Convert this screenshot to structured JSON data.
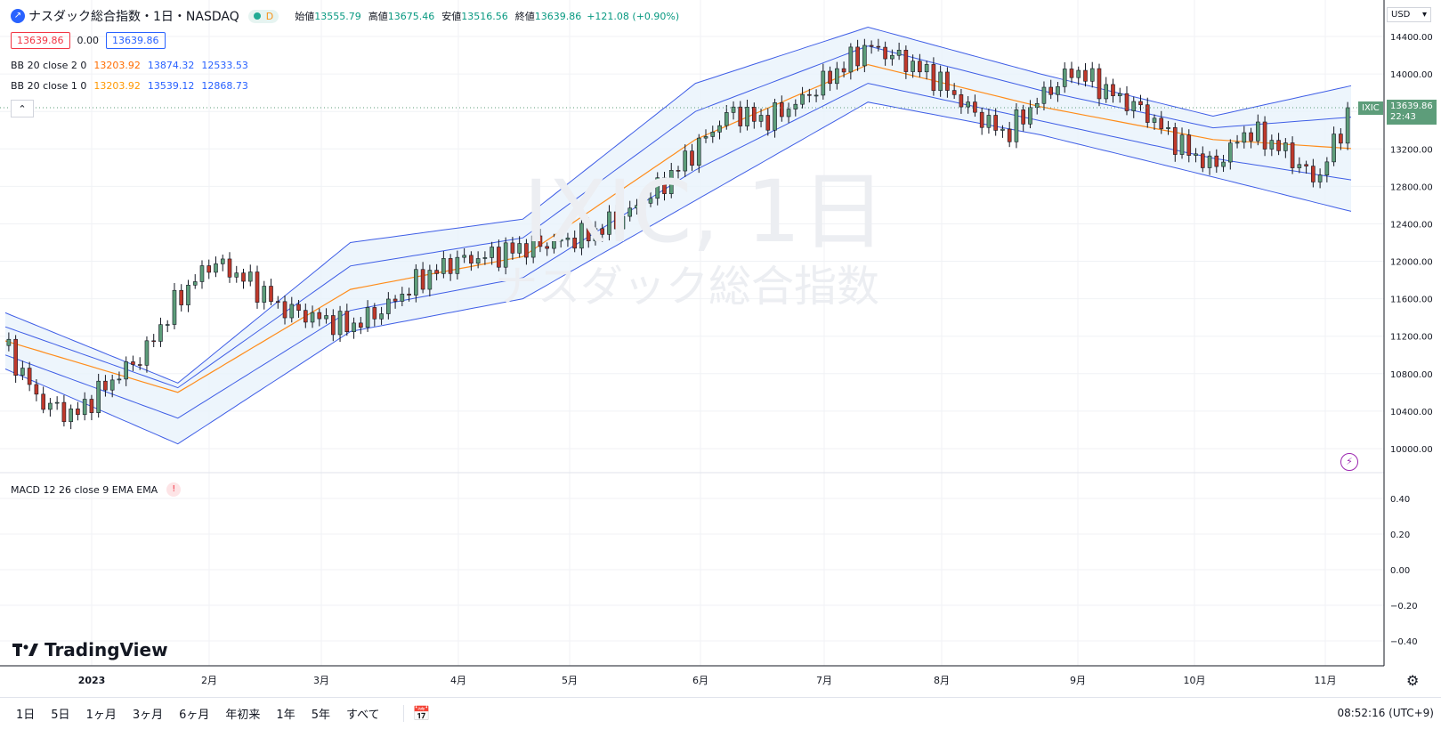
{
  "header": {
    "symbol_title": "ナスダック総合指数・1日・NASDAQ",
    "status_letter": "D",
    "open_label": "始値",
    "open_value": "13555.79",
    "high_label": "高値",
    "high_value": "13675.46",
    "low_label": "安値",
    "low_value": "13516.56",
    "close_label": "終値",
    "close_value": "13639.86",
    "change": "+121.08 (+0.90%)",
    "bid": "13639.86",
    "spread": "0.00",
    "ask": "13639.86",
    "collapse_glyph": "⌃"
  },
  "indicators": [
    {
      "label": "BB 20 close 2 0",
      "basis": "13203.92",
      "upper": "13874.32",
      "lower": "12533.53"
    },
    {
      "label": "BB 20 close 1 0",
      "basis": "13203.92",
      "upper": "13539.12",
      "lower": "12868.73"
    }
  ],
  "macd": {
    "label": "MACD 12 26 close 9 EMA EMA",
    "alert_glyph": "!"
  },
  "watermark": {
    "line1": "IXIC, 1日",
    "line2": "ナスダック総合指数"
  },
  "price_scale": {
    "currency": "USD",
    "ticks": [
      "14400.00",
      "14000.00",
      "13600.00",
      "13200.00",
      "12800.00",
      "12400.00",
      "12000.00",
      "11600.00",
      "11200.00",
      "10800.00",
      "10400.00",
      "10000.00"
    ],
    "last_symbol": "IXIC",
    "last_price": "13639.86",
    "countdown": "22:43"
  },
  "macd_scale": {
    "ticks": [
      "0.40",
      "0.20",
      "0.00",
      "−0.20",
      "−0.40"
    ]
  },
  "time_axis": {
    "labels": [
      "2023",
      "2月",
      "3月",
      "4月",
      "5月",
      "6月",
      "7月",
      "8月",
      "9月",
      "10月",
      "11月"
    ]
  },
  "timeframes": [
    "1日",
    "5日",
    "1ヶ月",
    "3ヶ月",
    "6ヶ月",
    "年初来",
    "1年",
    "5年",
    "すべて"
  ],
  "clock": "08:52:16 (UTC+9)",
  "brand": "TradingView",
  "colors": {
    "up": "#5d9d7a",
    "down": "#c0392b",
    "basis": "#ff8c1a",
    "band": "#3f5ee6",
    "band_fill": "#e8f2fb",
    "grid": "#f0f2f5",
    "text": "#131722"
  },
  "chart_data": {
    "type": "candlestick",
    "title": "IXIC, 1日",
    "subtitle": "ナスダック総合指数",
    "x_labels": [
      "2023",
      "2月",
      "3月",
      "4月",
      "5月",
      "6月",
      "7月",
      "8月",
      "9月",
      "10月",
      "11月"
    ],
    "ylim": [
      9800,
      14600
    ],
    "close_series": [
      [
        0,
        11100
      ],
      [
        10,
        10500
      ],
      [
        20,
        10350
      ],
      [
        30,
        10700
      ],
      [
        40,
        11000
      ],
      [
        50,
        11600
      ],
      [
        60,
        12000
      ],
      [
        70,
        11800
      ],
      [
        80,
        11500
      ],
      [
        90,
        11400
      ],
      [
        100,
        11300
      ],
      [
        110,
        11500
      ],
      [
        120,
        11800
      ],
      [
        130,
        12000
      ],
      [
        140,
        12050
      ],
      [
        150,
        12150
      ],
      [
        160,
        12200
      ],
      [
        170,
        12300
      ],
      [
        180,
        12500
      ],
      [
        190,
        12800
      ],
      [
        200,
        13200
      ],
      [
        210,
        13600
      ],
      [
        220,
        13500
      ],
      [
        230,
        13700
      ],
      [
        240,
        14000
      ],
      [
        250,
        14300
      ],
      [
        260,
        14150
      ],
      [
        270,
        13950
      ],
      [
        280,
        13600
      ],
      [
        290,
        13350
      ],
      [
        300,
        13750
      ],
      [
        310,
        14050
      ],
      [
        320,
        13800
      ],
      [
        330,
        13600
      ],
      [
        340,
        13250
      ],
      [
        350,
        13000
      ],
      [
        360,
        13400
      ],
      [
        370,
        13200
      ],
      [
        380,
        12850
      ],
      [
        390,
        13639.86
      ]
    ],
    "bb_upper_2": [
      [
        0,
        11450
      ],
      [
        50,
        10700
      ],
      [
        100,
        12200
      ],
      [
        150,
        12450
      ],
      [
        200,
        13900
      ],
      [
        250,
        14500
      ],
      [
        300,
        14000
      ],
      [
        350,
        13550
      ],
      [
        390,
        13874.32
      ]
    ],
    "bb_basis": [
      [
        0,
        11150
      ],
      [
        50,
        10600
      ],
      [
        100,
        11700
      ],
      [
        150,
        12050
      ],
      [
        200,
        13300
      ],
      [
        250,
        14100
      ],
      [
        300,
        13650
      ],
      [
        350,
        13300
      ],
      [
        390,
        13203.92
      ]
    ],
    "bb_lower_2": [
      [
        0,
        10850
      ],
      [
        50,
        10050
      ],
      [
        100,
        11250
      ],
      [
        150,
        11600
      ],
      [
        200,
        12650
      ],
      [
        250,
        13700
      ],
      [
        300,
        13350
      ],
      [
        350,
        12900
      ],
      [
        390,
        12533.53
      ]
    ],
    "last": {
      "open": 13555.79,
      "high": 13675.46,
      "low": 13516.56,
      "close": 13639.86,
      "change": 121.08,
      "change_pct": 0.9
    },
    "macd_ylim": [
      -0.5,
      0.5
    ]
  }
}
